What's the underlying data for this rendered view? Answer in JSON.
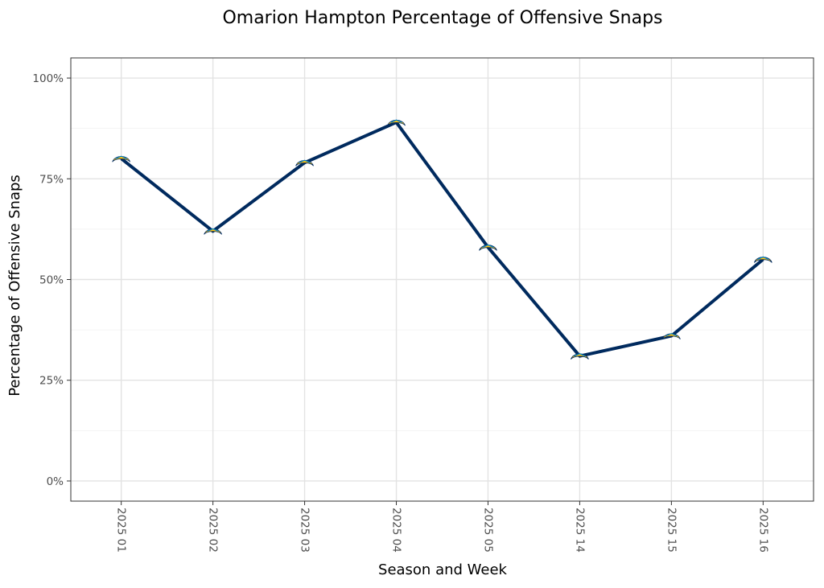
{
  "chart_data": {
    "type": "line",
    "title": "Omarion Hampton Percentage of Offensive Snaps",
    "xlabel": "Season and Week",
    "ylabel": "Percentage of Offensive Snaps",
    "categories": [
      "2025 01",
      "2025 02",
      "2025 03",
      "2025 04",
      "2025 05",
      "2025 14",
      "2025 15",
      "2025 16"
    ],
    "series": [
      {
        "name": "Omarion Hampton",
        "values": [
          80,
          62,
          79,
          89,
          58,
          31,
          36,
          55
        ]
      }
    ],
    "ylim": [
      -5,
      105
    ],
    "yticks": [
      0,
      25,
      50,
      75,
      100
    ],
    "ytick_labels": [
      "0%",
      "25%",
      "50%",
      "75%",
      "100%"
    ],
    "grid": true,
    "line_color": "#002A5E",
    "marker": "team-logo-bolt",
    "marker_colors": {
      "fill": "#FFC20E",
      "accent": "#0080C6",
      "outline": "#002A5E"
    }
  }
}
